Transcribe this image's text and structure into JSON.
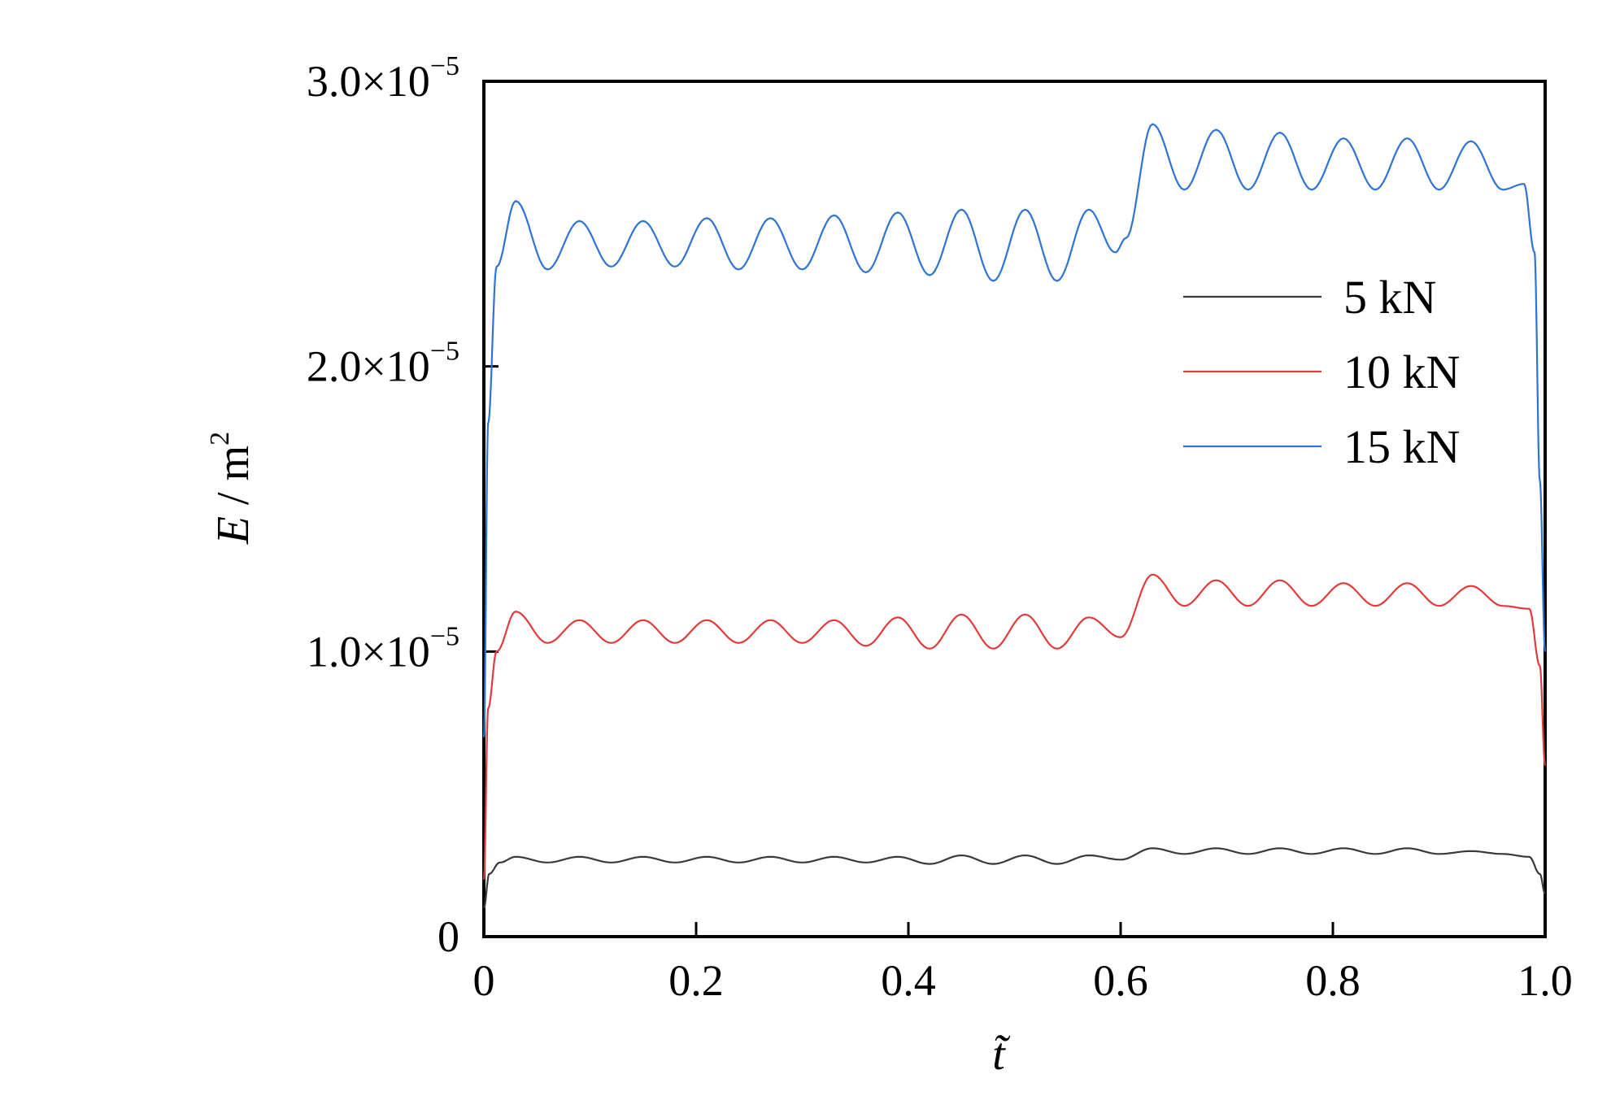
{
  "chart_data": {
    "type": "line",
    "xlabel": "t̃",
    "ylabel": {
      "var": "E",
      "sep": " / ",
      "unit": "m",
      "exp": "2"
    },
    "xlim": [
      0,
      1.0
    ],
    "ylim": [
      0,
      3e-05
    ],
    "x_ticks": [
      {
        "value": 0,
        "label": "0"
      },
      {
        "value": 0.2,
        "label": "0.2"
      },
      {
        "value": 0.4,
        "label": "0.4"
      },
      {
        "value": 0.6,
        "label": "0.6"
      },
      {
        "value": 0.8,
        "label": "0.8"
      },
      {
        "value": 1.0,
        "label": "1.0"
      }
    ],
    "y_ticks": [
      {
        "value": 0,
        "mantissa": "0",
        "exp": ""
      },
      {
        "value": 1e-05,
        "mantissa": "1.0×10",
        "exp": "−5"
      },
      {
        "value": 2e-05,
        "mantissa": "2.0×10",
        "exp": "−5"
      },
      {
        "value": 3e-05,
        "mantissa": "3.0×10",
        "exp": "−5"
      }
    ],
    "legend_position": "upper-right",
    "series": [
      {
        "name": "5 kN",
        "color": "#3a3a3a",
        "x": [
          0,
          0.005,
          0.015,
          0.03,
          0.06,
          0.09,
          0.12,
          0.15,
          0.18,
          0.21,
          0.24,
          0.27,
          0.3,
          0.33,
          0.36,
          0.39,
          0.42,
          0.45,
          0.48,
          0.51,
          0.54,
          0.57,
          0.6,
          0.63,
          0.66,
          0.69,
          0.72,
          0.75,
          0.78,
          0.81,
          0.84,
          0.87,
          0.9,
          0.93,
          0.96,
          0.985,
          0.995,
          1.0
        ],
        "y": [
          1e-06,
          2.2e-06,
          2.6e-06,
          2.8e-06,
          2.6e-06,
          2.8e-06,
          2.6e-06,
          2.8e-06,
          2.6e-06,
          2.8e-06,
          2.6e-06,
          2.8e-06,
          2.6e-06,
          2.8e-06,
          2.6e-06,
          2.8e-06,
          2.55e-06,
          2.85e-06,
          2.55e-06,
          2.85e-06,
          2.55e-06,
          2.85e-06,
          2.7e-06,
          3.1e-06,
          2.9e-06,
          3.1e-06,
          2.9e-06,
          3.1e-06,
          2.9e-06,
          3.1e-06,
          2.9e-06,
          3.1e-06,
          2.9e-06,
          3e-06,
          2.9e-06,
          2.8e-06,
          2.2e-06,
          1.5e-06
        ]
      },
      {
        "name": "10 kN",
        "color": "#e23b3b",
        "x": [
          0,
          0.004,
          0.012,
          0.03,
          0.06,
          0.09,
          0.12,
          0.15,
          0.18,
          0.21,
          0.24,
          0.27,
          0.3,
          0.33,
          0.36,
          0.39,
          0.42,
          0.45,
          0.48,
          0.51,
          0.54,
          0.57,
          0.6,
          0.63,
          0.66,
          0.69,
          0.72,
          0.75,
          0.78,
          0.81,
          0.84,
          0.87,
          0.9,
          0.93,
          0.96,
          0.985,
          0.995,
          1.0
        ],
        "y": [
          2e-06,
          8e-06,
          1e-05,
          1.14e-05,
          1.03e-05,
          1.11e-05,
          1.03e-05,
          1.11e-05,
          1.03e-05,
          1.11e-05,
          1.03e-05,
          1.11e-05,
          1.03e-05,
          1.11e-05,
          1.02e-05,
          1.12e-05,
          1.01e-05,
          1.13e-05,
          1.01e-05,
          1.13e-05,
          1.01e-05,
          1.12e-05,
          1.05e-05,
          1.27e-05,
          1.16e-05,
          1.25e-05,
          1.16e-05,
          1.25e-05,
          1.16e-05,
          1.24e-05,
          1.16e-05,
          1.24e-05,
          1.16e-05,
          1.23e-05,
          1.16e-05,
          1.15e-05,
          9.5e-06,
          6e-06
        ]
      },
      {
        "name": "15 kN",
        "color": "#2f73d4",
        "x": [
          0,
          0.004,
          0.012,
          0.03,
          0.06,
          0.09,
          0.12,
          0.15,
          0.18,
          0.21,
          0.24,
          0.27,
          0.3,
          0.33,
          0.36,
          0.39,
          0.42,
          0.45,
          0.48,
          0.51,
          0.54,
          0.57,
          0.595,
          0.605,
          0.63,
          0.66,
          0.69,
          0.72,
          0.75,
          0.78,
          0.81,
          0.84,
          0.87,
          0.9,
          0.93,
          0.96,
          0.98,
          0.99,
          0.995,
          1.0
        ],
        "y": [
          7e-06,
          1.8e-05,
          2.35e-05,
          2.58e-05,
          2.34e-05,
          2.51e-05,
          2.35e-05,
          2.51e-05,
          2.35e-05,
          2.52e-05,
          2.34e-05,
          2.52e-05,
          2.34e-05,
          2.53e-05,
          2.33e-05,
          2.54e-05,
          2.32e-05,
          2.55e-05,
          2.3e-05,
          2.55e-05,
          2.3e-05,
          2.55e-05,
          2.4e-05,
          2.45e-05,
          2.85e-05,
          2.62e-05,
          2.83e-05,
          2.62e-05,
          2.82e-05,
          2.62e-05,
          2.8e-05,
          2.62e-05,
          2.8e-05,
          2.62e-05,
          2.79e-05,
          2.62e-05,
          2.64e-05,
          2.4e-05,
          1.6e-05,
          1e-05
        ]
      }
    ]
  }
}
